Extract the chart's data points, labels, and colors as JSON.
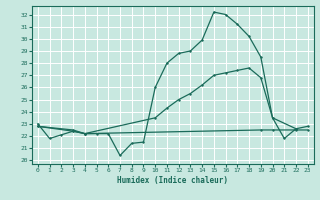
{
  "background_color": "#c8e8e0",
  "grid_color": "#ffffff",
  "line_color": "#1a6b5a",
  "xlabel": "Humidex (Indice chaleur)",
  "xlim": [
    -0.5,
    23.5
  ],
  "ylim": [
    19.7,
    32.7
  ],
  "yticks": [
    20,
    21,
    22,
    23,
    24,
    25,
    26,
    27,
    28,
    29,
    30,
    31,
    32
  ],
  "xticks": [
    0,
    1,
    2,
    3,
    4,
    5,
    6,
    7,
    8,
    9,
    10,
    11,
    12,
    13,
    14,
    15,
    16,
    17,
    18,
    19,
    20,
    21,
    22,
    23
  ],
  "c1x": [
    0,
    1,
    2,
    3,
    4,
    5,
    6,
    7,
    8,
    9,
    10,
    11,
    12,
    13,
    14,
    15,
    16,
    17,
    18,
    19,
    20,
    21,
    22
  ],
  "c1y": [
    23.0,
    21.8,
    22.1,
    22.4,
    22.2,
    22.2,
    22.2,
    20.4,
    21.4,
    21.5,
    26.0,
    28.0,
    28.8,
    29.0,
    29.9,
    32.2,
    32.0,
    31.2,
    30.2,
    28.5,
    23.5,
    21.8,
    22.6
  ],
  "c2x": [
    0,
    3,
    4,
    10,
    11,
    12,
    13,
    14,
    15,
    16,
    17,
    18,
    19,
    20,
    22,
    23
  ],
  "c2y": [
    22.8,
    22.5,
    22.2,
    23.5,
    24.3,
    25.0,
    25.5,
    26.2,
    27.0,
    27.2,
    27.4,
    27.6,
    26.8,
    23.5,
    22.6,
    22.8
  ],
  "c3x": [
    0,
    3,
    4,
    19,
    20,
    22,
    23
  ],
  "c3y": [
    22.8,
    22.4,
    22.2,
    22.5,
    22.5,
    22.5,
    22.5
  ]
}
